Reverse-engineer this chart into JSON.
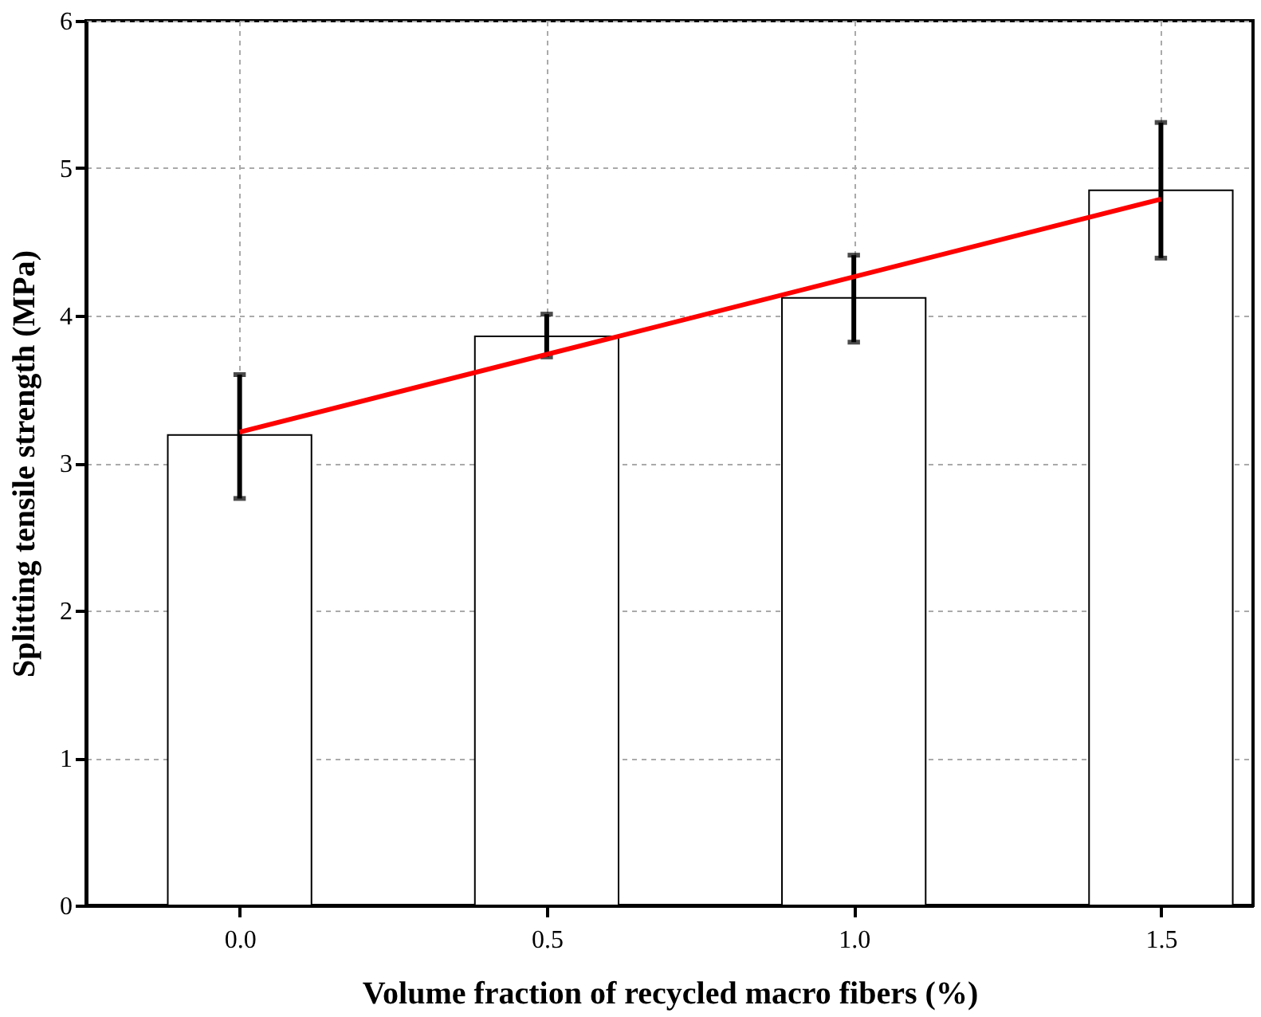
{
  "chart_data": {
    "type": "bar",
    "xlabel": "Volume fraction of recycled macro fibers (%)",
    "ylabel": "Splitting tensile strength (MPa)",
    "x": [
      0,
      0.5,
      1.0,
      1.5
    ],
    "xlim": [
      -0.25,
      1.65
    ],
    "xticks": [
      {
        "value": 0,
        "label": "0.0"
      },
      0.5,
      {
        "value": 1.0,
        "label": "1.0"
      },
      1.5
    ],
    "ylim": [
      0,
      6
    ],
    "yticks": [
      0,
      1,
      2,
      3,
      4,
      5,
      6
    ],
    "grid": true,
    "series": [
      {
        "color": "#ffffff",
        "values": [
          3.19,
          3.86,
          4.12,
          4.85
        ],
        "errors": [
          [
            2.76,
            3.6
          ],
          [
            3.72,
            4.01
          ],
          [
            3.82,
            4.41
          ],
          [
            4.39,
            5.31
          ]
        ]
      },
      {
        "type": "line",
        "color": "#ff0000",
        "x": [
          0,
          1.5
        ],
        "values": [
          3.21,
          4.79
        ]
      }
    ]
  }
}
